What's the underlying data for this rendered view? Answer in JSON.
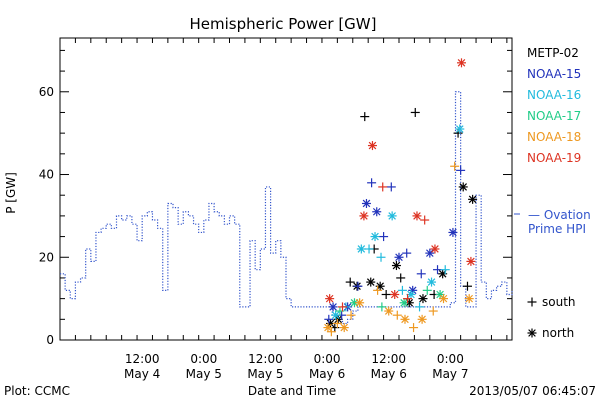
{
  "chart_data": {
    "type": "scatter",
    "title": "Hemispheric Power [GW]",
    "ylabel": "P [GW]",
    "xlabel": "Date and Time",
    "ylim": [
      0,
      73
    ],
    "xlim": [
      "2013-05-03 20:00",
      "2013-05-07 12:00"
    ],
    "yticks": [
      0,
      20,
      40,
      60
    ],
    "xticks": [
      {
        "t": "2013-05-04 12:00",
        "line1": "12:00",
        "line2": "May 4"
      },
      {
        "t": "2013-05-05 00:00",
        "line1": "0:00",
        "line2": "May 5"
      },
      {
        "t": "2013-05-05 12:00",
        "line1": "12:00",
        "line2": "May 5"
      },
      {
        "t": "2013-05-06 00:00",
        "line1": "0:00",
        "line2": "May 6"
      },
      {
        "t": "2013-05-06 12:00",
        "line1": "12:00",
        "line2": "May 6"
      },
      {
        "t": "2013-05-07 00:00",
        "line1": "0:00",
        "line2": "May 7"
      }
    ],
    "marker_legend": [
      {
        "symbol": "+",
        "label": "south"
      },
      {
        "symbol": "*",
        "label": "north"
      }
    ],
    "model_series": {
      "label_line1": "— Ovation",
      "label_line2": "Prime HPI",
      "color": "#3355cc",
      "points": [
        [
          "2013-05-03 20:00",
          16
        ],
        [
          "2013-05-03 21:00",
          12
        ],
        [
          "2013-05-03 22:00",
          10
        ],
        [
          "2013-05-03 23:00",
          14
        ],
        [
          "2013-05-04 00:00",
          15
        ],
        [
          "2013-05-04 01:00",
          22
        ],
        [
          "2013-05-04 02:00",
          19
        ],
        [
          "2013-05-04 03:00",
          26
        ],
        [
          "2013-05-04 04:00",
          27
        ],
        [
          "2013-05-04 05:00",
          28
        ],
        [
          "2013-05-04 06:00",
          27
        ],
        [
          "2013-05-04 07:00",
          30
        ],
        [
          "2013-05-04 08:00",
          29
        ],
        [
          "2013-05-04 09:00",
          30
        ],
        [
          "2013-05-04 10:00",
          28
        ],
        [
          "2013-05-04 11:00",
          24
        ],
        [
          "2013-05-04 12:00",
          30
        ],
        [
          "2013-05-04 13:00",
          31
        ],
        [
          "2013-05-04 14:00",
          29
        ],
        [
          "2013-05-04 15:00",
          27
        ],
        [
          "2013-05-04 16:00",
          12
        ],
        [
          "2013-05-04 17:00",
          33
        ],
        [
          "2013-05-04 18:00",
          32
        ],
        [
          "2013-05-04 19:00",
          28
        ],
        [
          "2013-05-04 20:00",
          31
        ],
        [
          "2013-05-04 21:00",
          30
        ],
        [
          "2013-05-04 22:00",
          28
        ],
        [
          "2013-05-04 23:00",
          26
        ],
        [
          "2013-05-05 00:00",
          29
        ],
        [
          "2013-05-05 01:00",
          33
        ],
        [
          "2013-05-05 02:00",
          31
        ],
        [
          "2013-05-05 03:00",
          30
        ],
        [
          "2013-05-05 04:00",
          28
        ],
        [
          "2013-05-05 05:00",
          30
        ],
        [
          "2013-05-05 06:00",
          28
        ],
        [
          "2013-05-05 07:00",
          8
        ],
        [
          "2013-05-05 08:00",
          8
        ],
        [
          "2013-05-05 09:00",
          24
        ],
        [
          "2013-05-05 10:00",
          17
        ],
        [
          "2013-05-05 11:00",
          22
        ],
        [
          "2013-05-05 12:00",
          37
        ],
        [
          "2013-05-05 13:00",
          21
        ],
        [
          "2013-05-05 14:00",
          24
        ],
        [
          "2013-05-05 15:00",
          20
        ],
        [
          "2013-05-05 16:00",
          10
        ],
        [
          "2013-05-05 17:00",
          8
        ],
        [
          "2013-05-05 18:00",
          8
        ],
        [
          "2013-05-05 19:00",
          8
        ],
        [
          "2013-05-05 20:00",
          8
        ],
        [
          "2013-05-05 21:00",
          8
        ],
        [
          "2013-05-05 22:00",
          8
        ],
        [
          "2013-05-05 23:00",
          8
        ],
        [
          "2013-05-06 00:00",
          8
        ],
        [
          "2013-05-06 01:00",
          6
        ],
        [
          "2013-05-06 02:00",
          5
        ],
        [
          "2013-05-06 03:00",
          4
        ],
        [
          "2013-05-06 04:00",
          5
        ],
        [
          "2013-05-06 05:00",
          7
        ],
        [
          "2013-05-06 06:00",
          8
        ],
        [
          "2013-05-06 07:00",
          8
        ],
        [
          "2013-05-06 08:00",
          8
        ],
        [
          "2013-05-06 09:00",
          8
        ],
        [
          "2013-05-06 10:00",
          8
        ],
        [
          "2013-05-06 11:00",
          8
        ],
        [
          "2013-05-06 12:00",
          8
        ],
        [
          "2013-05-06 13:00",
          8
        ],
        [
          "2013-05-06 14:00",
          8
        ],
        [
          "2013-05-06 15:00",
          8
        ],
        [
          "2013-05-06 16:00",
          8
        ],
        [
          "2013-05-06 17:00",
          8
        ],
        [
          "2013-05-06 18:00",
          8
        ],
        [
          "2013-05-06 19:00",
          8
        ],
        [
          "2013-05-06 20:00",
          8
        ],
        [
          "2013-05-06 21:00",
          8
        ],
        [
          "2013-05-06 22:00",
          8
        ],
        [
          "2013-05-06 23:00",
          8
        ],
        [
          "2013-05-07 00:00",
          9
        ],
        [
          "2013-05-07 01:00",
          60
        ],
        [
          "2013-05-07 02:00",
          13
        ],
        [
          "2013-05-07 03:00",
          8
        ],
        [
          "2013-05-07 04:00",
          8
        ],
        [
          "2013-05-07 05:00",
          35
        ],
        [
          "2013-05-07 06:00",
          14
        ],
        [
          "2013-05-07 07:00",
          10
        ],
        [
          "2013-05-07 08:00",
          12
        ],
        [
          "2013-05-07 09:00",
          13
        ],
        [
          "2013-05-07 10:00",
          14
        ],
        [
          "2013-05-07 11:00",
          11
        ],
        [
          "2013-05-07 12:00",
          12
        ]
      ]
    },
    "series": [
      {
        "name": "METP-02",
        "color": "#000000",
        "points": [
          [
            "2013-05-06 00:40",
            4,
            "*"
          ],
          [
            "2013-05-06 01:30",
            3,
            "+"
          ],
          [
            "2013-05-06 02:10",
            5,
            "*"
          ],
          [
            "2013-05-06 04:30",
            14,
            "+"
          ],
          [
            "2013-05-06 05:50",
            13,
            "*"
          ],
          [
            "2013-05-06 07:20",
            54,
            "+"
          ],
          [
            "2013-05-06 08:30",
            14,
            "*"
          ],
          [
            "2013-05-06 09:10",
            22,
            "+"
          ],
          [
            "2013-05-06 10:20",
            13,
            "*"
          ],
          [
            "2013-05-06 11:30",
            11,
            "+"
          ],
          [
            "2013-05-06 13:30",
            18,
            "*"
          ],
          [
            "2013-05-06 14:20",
            15,
            "+"
          ],
          [
            "2013-05-06 16:00",
            9,
            "*"
          ],
          [
            "2013-05-06 17:10",
            55,
            "+"
          ],
          [
            "2013-05-06 18:40",
            10,
            "*"
          ],
          [
            "2013-05-06 20:50",
            11,
            "+"
          ],
          [
            "2013-05-06 22:30",
            16,
            "*"
          ],
          [
            "2013-05-07 01:30",
            50,
            "+"
          ],
          [
            "2013-05-07 02:30",
            37,
            "*"
          ],
          [
            "2013-05-07 03:20",
            13,
            "+"
          ],
          [
            "2013-05-07 04:20",
            34,
            "*"
          ]
        ]
      },
      {
        "name": "NOAA-15",
        "color": "#2233bb",
        "points": [
          [
            "2013-05-06 00:20",
            5,
            "+"
          ],
          [
            "2013-05-06 01:10",
            8,
            "*"
          ],
          [
            "2013-05-06 02:50",
            6,
            "+"
          ],
          [
            "2013-05-06 04:00",
            8,
            "*"
          ],
          [
            "2013-05-06 06:00",
            13,
            "+"
          ],
          [
            "2013-05-06 07:40",
            33,
            "*"
          ],
          [
            "2013-05-06 08:40",
            38,
            "+"
          ],
          [
            "2013-05-06 09:40",
            31,
            "*"
          ],
          [
            "2013-05-06 11:00",
            25,
            "+"
          ],
          [
            "2013-05-06 12:30",
            37,
            "+"
          ],
          [
            "2013-05-06 14:00",
            20,
            "*"
          ],
          [
            "2013-05-06 15:30",
            21,
            "+"
          ],
          [
            "2013-05-06 16:40",
            12,
            "*"
          ],
          [
            "2013-05-06 18:20",
            16,
            "+"
          ],
          [
            "2013-05-06 20:00",
            21,
            "*"
          ],
          [
            "2013-05-06 21:30",
            17,
            "+"
          ],
          [
            "2013-05-07 00:30",
            26,
            "*"
          ],
          [
            "2013-05-07 02:00",
            41,
            "+"
          ]
        ]
      },
      {
        "name": "NOAA-16",
        "color": "#22bbdd",
        "points": [
          [
            "2013-05-06 01:40",
            6,
            "*"
          ],
          [
            "2013-05-06 03:40",
            8,
            "+"
          ],
          [
            "2013-05-06 06:40",
            22,
            "*"
          ],
          [
            "2013-05-06 08:10",
            22,
            "+"
          ],
          [
            "2013-05-06 09:20",
            25,
            "*"
          ],
          [
            "2013-05-06 10:30",
            20,
            "+"
          ],
          [
            "2013-05-06 12:40",
            30,
            "*"
          ],
          [
            "2013-05-06 14:40",
            12,
            "+"
          ],
          [
            "2013-05-06 16:20",
            11,
            "*"
          ],
          [
            "2013-05-06 18:00",
            8,
            "+"
          ],
          [
            "2013-05-06 20:20",
            14,
            "*"
          ],
          [
            "2013-05-06 23:00",
            17,
            "+"
          ],
          [
            "2013-05-07 01:50",
            51,
            "*"
          ]
        ]
      },
      {
        "name": "NOAA-17",
        "color": "#22cc88",
        "points": [
          [
            "2013-05-06 02:30",
            7,
            "+"
          ],
          [
            "2013-05-06 05:20",
            9,
            "*"
          ],
          [
            "2013-05-06 10:40",
            8,
            "+"
          ],
          [
            "2013-05-06 15:00",
            9,
            "*"
          ],
          [
            "2013-05-06 19:30",
            12,
            "+"
          ],
          [
            "2013-05-06 22:00",
            11,
            "*"
          ]
        ]
      },
      {
        "name": "NOAA-18",
        "color": "#ee9922",
        "points": [
          [
            "2013-05-06 00:10",
            3,
            "*"
          ],
          [
            "2013-05-06 00:50",
            2,
            "+"
          ],
          [
            "2013-05-06 02:00",
            4,
            "+"
          ],
          [
            "2013-05-06 03:20",
            3,
            "*"
          ],
          [
            "2013-05-06 04:40",
            6,
            "+"
          ],
          [
            "2013-05-06 06:20",
            9,
            "*"
          ],
          [
            "2013-05-06 09:50",
            12,
            "+"
          ],
          [
            "2013-05-06 12:00",
            7,
            "*"
          ],
          [
            "2013-05-06 13:40",
            6,
            "+"
          ],
          [
            "2013-05-06 15:10",
            5,
            "*"
          ],
          [
            "2013-05-06 16:50",
            3,
            "+"
          ],
          [
            "2013-05-06 18:30",
            5,
            "*"
          ],
          [
            "2013-05-06 20:40",
            7,
            "+"
          ],
          [
            "2013-05-06 22:40",
            10,
            "*"
          ],
          [
            "2013-05-07 00:50",
            42,
            "+"
          ],
          [
            "2013-05-07 03:40",
            10,
            "*"
          ]
        ]
      },
      {
        "name": "NOAA-19",
        "color": "#dd3322",
        "points": [
          [
            "2013-05-06 00:30",
            10,
            "*"
          ],
          [
            "2013-05-06 03:00",
            8,
            "+"
          ],
          [
            "2013-05-06 07:10",
            30,
            "*"
          ],
          [
            "2013-05-06 08:50",
            47,
            "*"
          ],
          [
            "2013-05-06 10:50",
            37,
            "+"
          ],
          [
            "2013-05-06 13:10",
            11,
            "*"
          ],
          [
            "2013-05-06 15:40",
            10,
            "+"
          ],
          [
            "2013-05-06 17:30",
            30,
            "*"
          ],
          [
            "2013-05-06 19:00",
            29,
            "+"
          ],
          [
            "2013-05-06 21:00",
            22,
            "*"
          ],
          [
            "2013-05-07 02:10",
            67,
            "*"
          ],
          [
            "2013-05-07 04:00",
            19,
            "*"
          ]
        ]
      }
    ]
  },
  "footer": {
    "plot_credit": "Plot: CCMC",
    "timestamp": "2013/05/07 06:45:07"
  }
}
